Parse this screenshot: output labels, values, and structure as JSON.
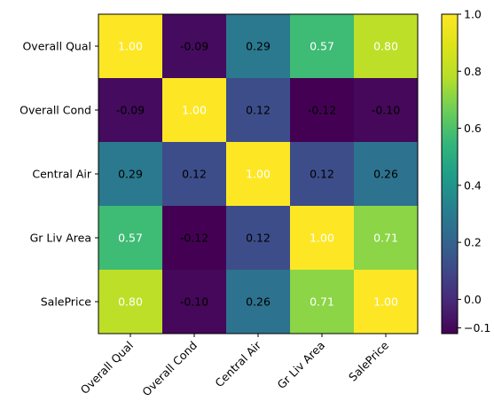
{
  "chart_data": {
    "type": "heatmap",
    "title": "",
    "xlabel": "",
    "ylabel": "",
    "row_labels": [
      "Overall Qual",
      "Overall Cond",
      "Central Air",
      "Gr Liv Area",
      "SalePrice"
    ],
    "col_labels": [
      "Overall Qual",
      "Overall Cond",
      "Central Air",
      "Gr Liv Area",
      "SalePrice"
    ],
    "values": [
      [
        1.0,
        -0.09,
        0.29,
        0.57,
        0.8
      ],
      [
        -0.09,
        1.0,
        0.12,
        -0.12,
        -0.1
      ],
      [
        0.29,
        0.12,
        1.0,
        0.12,
        0.26
      ],
      [
        0.57,
        -0.12,
        0.12,
        1.0,
        0.71
      ],
      [
        0.8,
        -0.1,
        0.26,
        0.71,
        1.0
      ]
    ],
    "cell_labels": [
      [
        "1.00",
        "-0.09",
        "0.29",
        "0.57",
        "0.80"
      ],
      [
        "-0.09",
        "1.00",
        "0.12",
        "-0.12",
        "-0.10"
      ],
      [
        "0.29",
        "0.12",
        "1.00",
        "0.12",
        "0.26"
      ],
      [
        "0.57",
        "-0.12",
        "0.12",
        "1.00",
        "0.71"
      ],
      [
        "0.80",
        "-0.10",
        "0.26",
        "0.71",
        "1.00"
      ]
    ],
    "colormap": "viridis",
    "vmin": -0.12,
    "vmax": 1.0,
    "colorbar": {
      "ticks": [
        -0.1,
        0.0,
        0.2,
        0.4,
        0.6,
        0.8,
        1.0
      ],
      "tick_labels": [
        "−0.1",
        "0.0",
        "0.2",
        "0.4",
        "0.6",
        "0.8",
        "1.0"
      ]
    },
    "text_color_threshold": 0.44,
    "text_colors": {
      "light": "#ffffff",
      "dark": "#000000"
    },
    "grid": false,
    "colorbar_placement": "right"
  }
}
